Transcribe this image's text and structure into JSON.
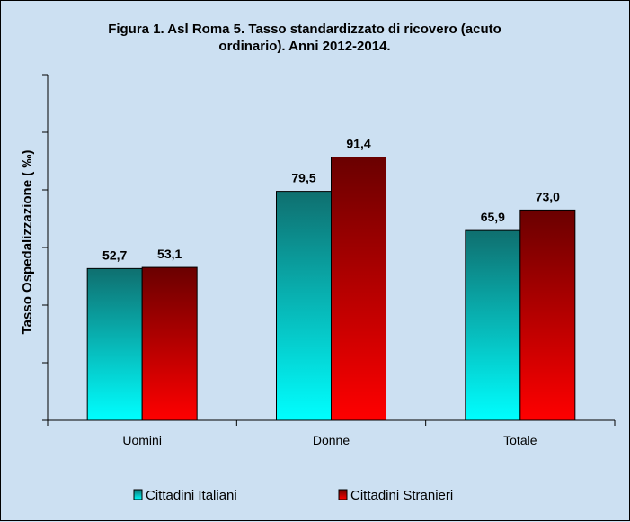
{
  "chart_data": {
    "type": "bar",
    "title_lines": [
      "Figura 1. Asl  Roma 5. Tasso standardizzato di ricovero (acuto",
      "ordinario). Anni 2012-2014."
    ],
    "ylabel": "Tasso Ospedalizzazione  ( ‰)",
    "xlabel": "",
    "categories": [
      "Uomini",
      "Donne",
      "Totale"
    ],
    "series": [
      {
        "name": "Cittadini Italiani",
        "values": [
          52.7,
          79.5,
          65.9
        ],
        "labels": [
          "52,7",
          "79,5",
          "65,9"
        ],
        "color_top": "#0f6f6f",
        "color_bottom": "#00ffff"
      },
      {
        "name": "Cittadini Stranieri",
        "values": [
          53.1,
          91.4,
          73.0
        ],
        "labels": [
          "53,1",
          "91,4",
          "73,0"
        ],
        "color_top": "#6a0000",
        "color_bottom": "#ff0000"
      }
    ],
    "ylim": [
      0,
      120
    ],
    "ytick_step": 20,
    "show_ytick_labels": false,
    "grid": false,
    "legend_position": "bottom",
    "background": "#cce0f2"
  }
}
